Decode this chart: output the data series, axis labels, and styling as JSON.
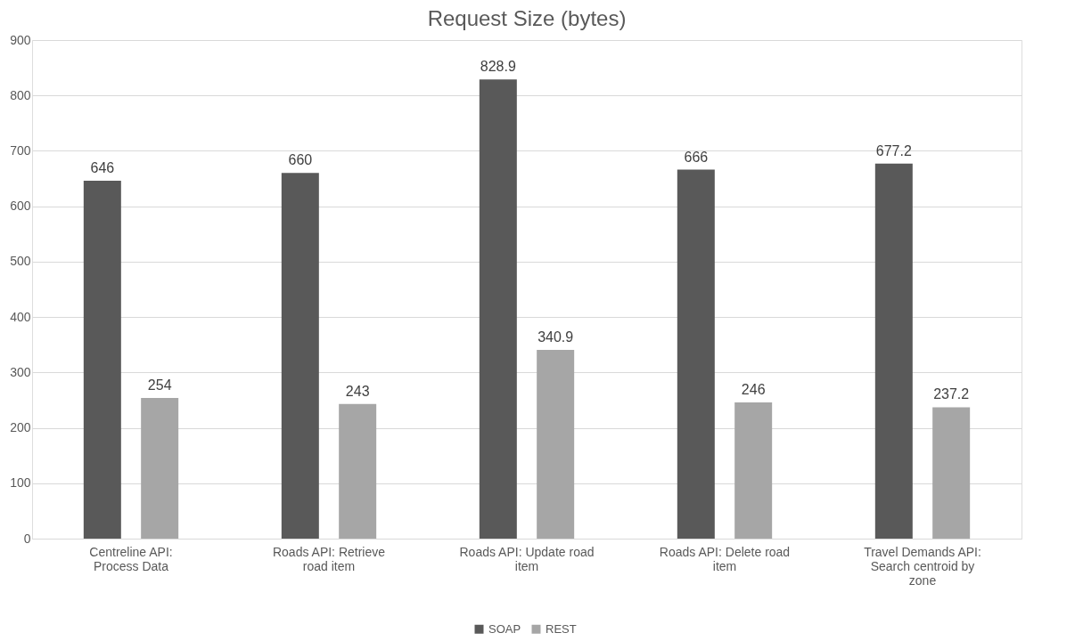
{
  "chart_data": {
    "type": "bar",
    "title": "Request Size (bytes)",
    "categories": [
      "Centreline API: Process Data",
      "Roads API: Retrieve road item",
      "Roads API: Update road item",
      "Roads API: Delete road item",
      "Travel Demands API: Search centroid by zone"
    ],
    "series": [
      {
        "name": "SOAP",
        "color": "#595959",
        "values": [
          646,
          660,
          828.9,
          666,
          677.2
        ]
      },
      {
        "name": "REST",
        "color": "#a6a6a6",
        "values": [
          254,
          243,
          340.9,
          246,
          237.2
        ]
      }
    ],
    "ylim": [
      0,
      900
    ],
    "yticks": [
      0,
      100,
      200,
      300,
      400,
      500,
      600,
      700,
      800,
      900
    ],
    "grid": "y",
    "legend": "bottom",
    "data_labels": true
  }
}
